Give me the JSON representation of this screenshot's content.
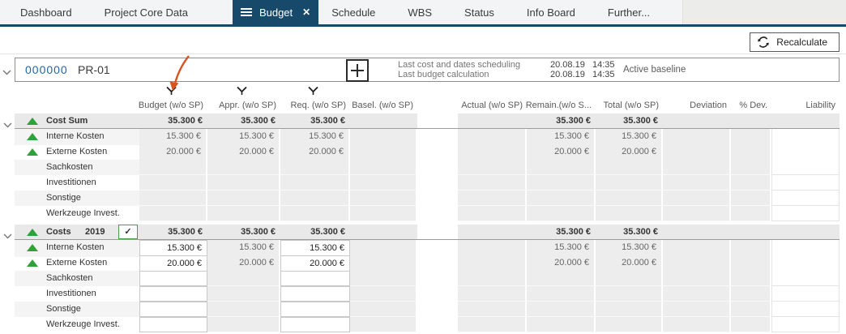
{
  "colors": {
    "accent_blue": "#17496b",
    "link_blue": "#2166a8",
    "indicator_green": "#2ea13b",
    "checkbox_green": "#46a049",
    "arrow_orange": "#d8541f"
  },
  "tab_bar": {
    "tabs": [
      {
        "label": "Dashboard",
        "active": false
      },
      {
        "label": "Project Core Data",
        "active": false
      },
      {
        "label": "Budget",
        "active": true
      },
      {
        "label": "Schedule",
        "active": false
      },
      {
        "label": "WBS",
        "active": false
      },
      {
        "label": "Status",
        "active": false
      },
      {
        "label": "Info Board",
        "active": false
      },
      {
        "label": "Further...",
        "active": false
      }
    ]
  },
  "toolbar": {
    "recalculate_label": "Recalculate"
  },
  "project": {
    "id": "000000",
    "code": "PR-01",
    "info_rows": [
      {
        "label": "Last cost and dates scheduling",
        "date": "20.08.19",
        "time": "14:35"
      },
      {
        "label": "Last budget calculation",
        "date": "20.08.19",
        "time": "14:35"
      }
    ],
    "baseline_label": "Active baseline"
  },
  "table": {
    "columns": [
      {
        "id": "budget",
        "label": "Budget (w/o SP)",
        "filter": true
      },
      {
        "id": "appr",
        "label": "Appr. (w/o SP)",
        "filter": true
      },
      {
        "id": "req",
        "label": "Req. (w/o SP)",
        "filter": true
      },
      {
        "id": "basel",
        "label": "Basel. (w/o SP)",
        "filter": false
      },
      {
        "id": "actual",
        "label": "Actual (w/o SP)",
        "filter": false
      },
      {
        "id": "remain",
        "label": "Remain.(w/o S...",
        "filter": false
      },
      {
        "id": "total",
        "label": "Total (w/o SP)",
        "filter": false
      },
      {
        "id": "deviation",
        "label": "Deviation",
        "filter": false
      },
      {
        "id": "pdev",
        "label": "% Dev.",
        "filter": false
      },
      {
        "id": "liability",
        "label": "Liability",
        "filter": false
      }
    ],
    "gap_after": "basel",
    "groups": [
      {
        "header": {
          "label": "Cost Sum",
          "year": "",
          "checkbox": false,
          "values": {
            "budget": "35.300 €",
            "appr": "35.300 €",
            "req": "35.300 €",
            "remain": "35.300 €",
            "total": "35.300 €"
          }
        },
        "editable_columns": [],
        "rows": [
          {
            "label": "Interne Kosten",
            "indicator": true,
            "values": {
              "budget": "15.300 €",
              "appr": "15.300 €",
              "req": "15.300 €",
              "remain": "15.300 €",
              "total": "15.300 €"
            }
          },
          {
            "label": "Externe Kosten",
            "indicator": true,
            "values": {
              "budget": "20.000 €",
              "appr": "20.000 €",
              "req": "20.000 €",
              "remain": "20.000 €",
              "total": "20.000 €"
            }
          },
          {
            "label": "Sachkosten",
            "indicator": false,
            "values": {}
          },
          {
            "label": "Investitionen",
            "indicator": false,
            "values": {}
          },
          {
            "label": "Sonstige",
            "indicator": false,
            "values": {}
          },
          {
            "label": "Werkzeuge Invest.",
            "indicator": false,
            "values": {}
          }
        ]
      },
      {
        "header": {
          "label": "Costs",
          "year": "2019",
          "checkbox": true,
          "values": {
            "budget": "35.300 €",
            "appr": "35.300 €",
            "req": "35.300 €",
            "remain": "35.300 €",
            "total": "35.300 €"
          }
        },
        "editable_columns": [
          "budget",
          "req"
        ],
        "rows": [
          {
            "label": "Interne Kosten",
            "indicator": true,
            "values": {
              "budget": "15.300 €",
              "appr": "15.300 €",
              "req": "15.300 €",
              "remain": "15.300 €",
              "total": "15.300 €"
            }
          },
          {
            "label": "Externe Kosten",
            "indicator": true,
            "values": {
              "budget": "20.000 €",
              "appr": "20.000 €",
              "req": "20.000 €",
              "remain": "20.000 €",
              "total": "20.000 €"
            }
          },
          {
            "label": "Sachkosten",
            "indicator": false,
            "values": {}
          },
          {
            "label": "Investitionen",
            "indicator": false,
            "values": {}
          },
          {
            "label": "Sonstige",
            "indicator": false,
            "values": {}
          },
          {
            "label": "Werkzeuge Invest.",
            "indicator": false,
            "values": {}
          }
        ]
      }
    ]
  }
}
